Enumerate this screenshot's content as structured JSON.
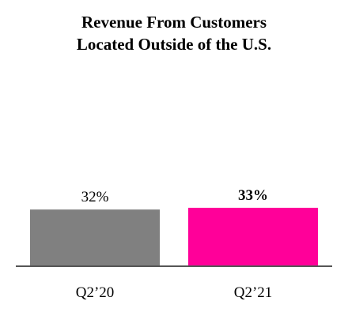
{
  "chart_data": {
    "type": "bar",
    "title": [
      "Revenue From Customers",
      "Located Outside of the U.S."
    ],
    "categories": [
      "Q2’20",
      "Q2’21"
    ],
    "values": [
      32,
      33
    ],
    "data_labels": [
      "32%",
      "33%"
    ],
    "label_bold": [
      false,
      true
    ],
    "colors": [
      "#808080",
      "#ff0099"
    ],
    "axis_color": "#555555",
    "ylim": [
      0,
      33
    ],
    "grid": false,
    "legend": "none"
  }
}
